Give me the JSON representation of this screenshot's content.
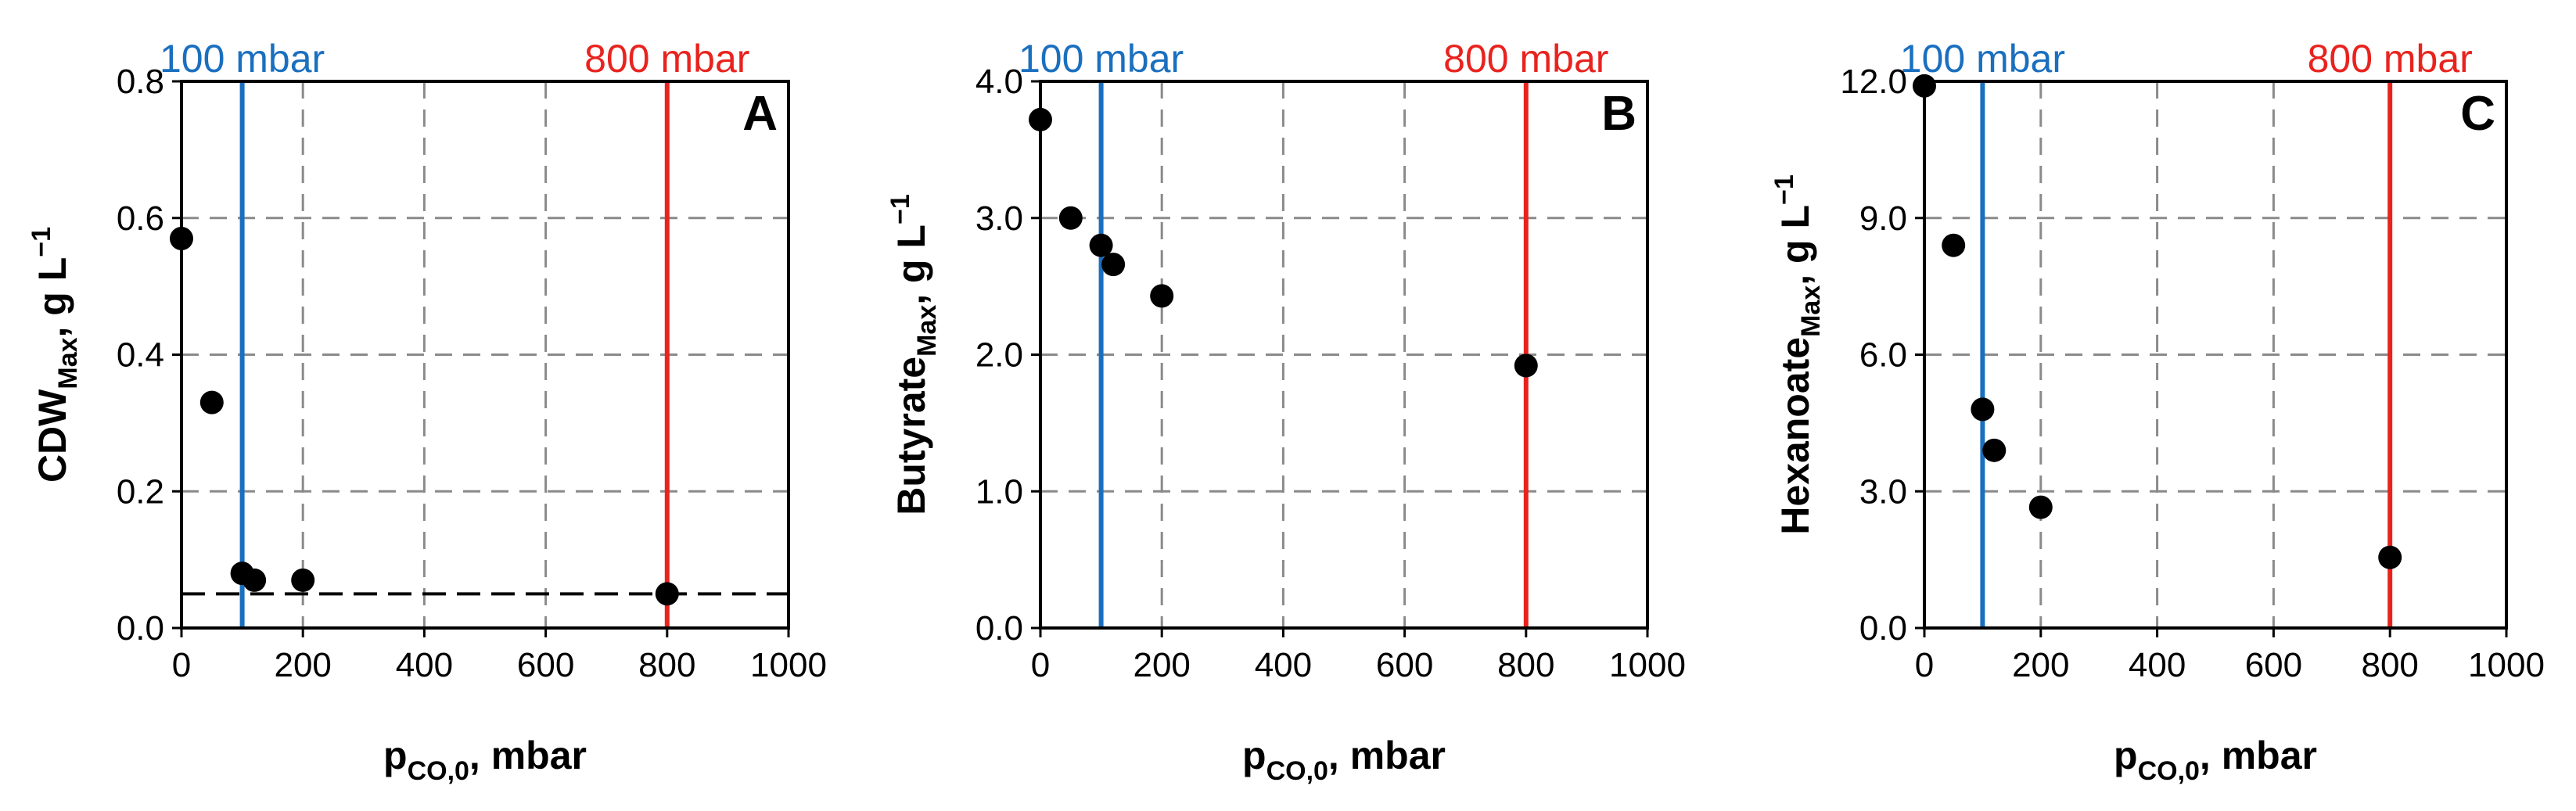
{
  "colors": {
    "ref_100": "#1a6fbf",
    "ref_800": "#e8231e",
    "marker": "#000000",
    "grid": "#8a8a8a",
    "threshold": "#000000"
  },
  "chart_data": [
    {
      "type": "scatter",
      "panel": "A",
      "xlabel": "p",
      "xlabel_sub": "CO,0",
      "xlabel_unit": ", mbar",
      "ylabel_main": "CDW",
      "ylabel_sub": "Max",
      "ylabel_unit": ", g L",
      "ylabel_sup": "−1",
      "xlim": [
        0,
        1000
      ],
      "ylim": [
        0,
        0.8
      ],
      "xticks": [
        0,
        200,
        400,
        600,
        800,
        1000
      ],
      "xtick_labels": [
        "0",
        "200",
        "400",
        "600",
        "800",
        "1000"
      ],
      "yticks": [
        0,
        0.2,
        0.4,
        0.6,
        0.8
      ],
      "ytick_labels": [
        "0.0",
        "0.2",
        "0.4",
        "0.6",
        "0.8"
      ],
      "grid": true,
      "x": [
        0,
        50,
        100,
        120,
        200,
        800
      ],
      "y": [
        0.57,
        0.33,
        0.08,
        0.07,
        0.07,
        0.05
      ],
      "reference_lines": [
        {
          "x": 100,
          "label": "100 mbar"
        },
        {
          "x": 800,
          "label": "800 mbar"
        }
      ],
      "threshold_y": 0.05
    },
    {
      "type": "scatter",
      "panel": "B",
      "xlabel": "p",
      "xlabel_sub": "CO,0",
      "xlabel_unit": ", mbar",
      "ylabel_main": "Butyrate",
      "ylabel_sub": "Max",
      "ylabel_unit": ", g L",
      "ylabel_sup": "−1",
      "xlim": [
        0,
        1000
      ],
      "ylim": [
        0,
        4
      ],
      "xticks": [
        0,
        200,
        400,
        600,
        800,
        1000
      ],
      "xtick_labels": [
        "0",
        "200",
        "400",
        "600",
        "800",
        "1000"
      ],
      "yticks": [
        0,
        1,
        2,
        3,
        4
      ],
      "ytick_labels": [
        "0.0",
        "1.0",
        "2.0",
        "3.0",
        "4.0"
      ],
      "grid": true,
      "x": [
        0,
        50,
        100,
        120,
        200,
        800
      ],
      "y": [
        3.72,
        3.0,
        2.8,
        2.66,
        2.43,
        1.92
      ],
      "reference_lines": [
        {
          "x": 100,
          "label": "100 mbar"
        },
        {
          "x": 800,
          "label": "800 mbar"
        }
      ]
    },
    {
      "type": "scatter",
      "panel": "C",
      "xlabel": "p",
      "xlabel_sub": "CO,0",
      "xlabel_unit": ", mbar",
      "ylabel_main": "Hexanoate",
      "ylabel_sub": "Max",
      "ylabel_unit": ", g L",
      "ylabel_sup": "−1",
      "xlim": [
        0,
        1000
      ],
      "ylim": [
        0,
        12
      ],
      "xticks": [
        0,
        200,
        400,
        600,
        800,
        1000
      ],
      "xtick_labels": [
        "0",
        "200",
        "400",
        "600",
        "800",
        "1000"
      ],
      "yticks": [
        0,
        3,
        6,
        9,
        12
      ],
      "ytick_labels": [
        "0.0",
        "3.0",
        "6.0",
        "9.0",
        "12.0"
      ],
      "grid": true,
      "x": [
        0,
        50,
        100,
        120,
        200,
        800
      ],
      "y": [
        11.9,
        8.4,
        4.8,
        3.9,
        2.65,
        1.55
      ],
      "reference_lines": [
        {
          "x": 100,
          "label": "100 mbar"
        },
        {
          "x": 800,
          "label": "800 mbar"
        }
      ]
    }
  ]
}
